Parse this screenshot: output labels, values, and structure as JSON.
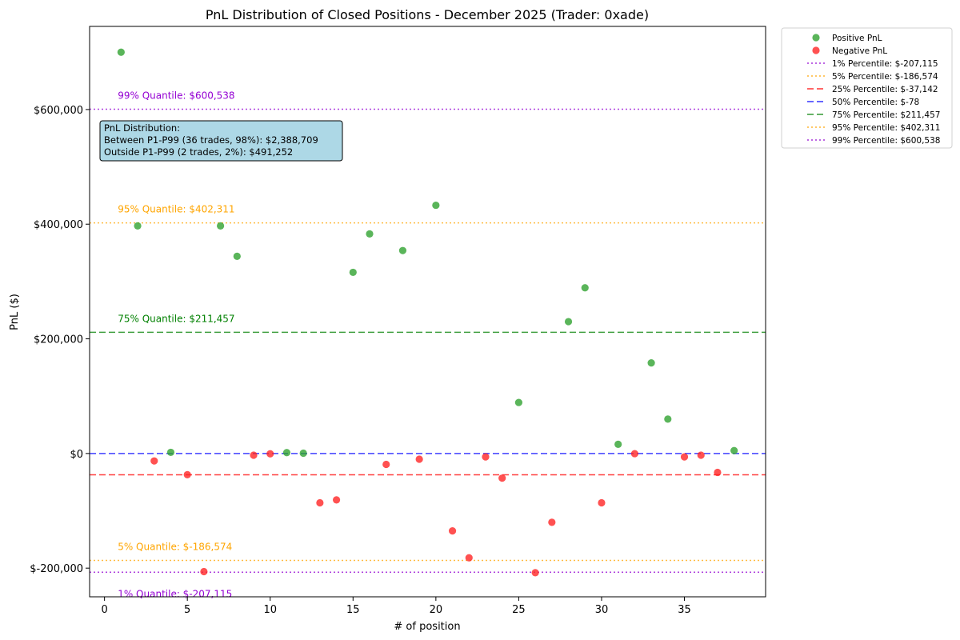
{
  "chart_data": {
    "type": "scatter",
    "title": "PnL Distribution of Closed Positions - December 2025 (Trader: 0xade)",
    "xlabel": "# of position",
    "ylabel": "PnL ($)",
    "xlim": [
      -0.9,
      39.9
    ],
    "ylim": [
      -250000,
      745000
    ],
    "xticks": [
      0,
      5,
      10,
      15,
      20,
      25,
      30,
      35
    ],
    "yticks": [
      -200000,
      0,
      200000,
      400000,
      600000
    ],
    "ytick_labels": [
      "$-200,000",
      "$0",
      "$200,000",
      "$400,000",
      "$600,000"
    ],
    "grid": false,
    "legend_position": "outside-right",
    "series": [
      {
        "name": "Positive PnL",
        "color": "#2ca02c",
        "points": [
          [
            1,
            700000
          ],
          [
            2,
            397000
          ],
          [
            4,
            2000
          ],
          [
            7,
            397000
          ],
          [
            8,
            344000
          ],
          [
            11,
            1500
          ],
          [
            12,
            500
          ],
          [
            15,
            316000
          ],
          [
            16,
            383000
          ],
          [
            18,
            354000
          ],
          [
            20,
            433000
          ],
          [
            25,
            89000
          ],
          [
            28,
            230000
          ],
          [
            29,
            289000
          ],
          [
            31,
            16000
          ],
          [
            33,
            158000
          ],
          [
            34,
            60000
          ],
          [
            38,
            5000
          ]
        ]
      },
      {
        "name": "Negative PnL",
        "color": "#ff2020",
        "points": [
          [
            3,
            -13000
          ],
          [
            5,
            -37000
          ],
          [
            6,
            -206000
          ],
          [
            9,
            -3000
          ],
          [
            10,
            -500
          ],
          [
            13,
            -86000
          ],
          [
            14,
            -81000
          ],
          [
            17,
            -19000
          ],
          [
            19,
            -10000
          ],
          [
            21,
            -135000
          ],
          [
            22,
            -182000
          ],
          [
            23,
            -6000
          ],
          [
            24,
            -43000
          ],
          [
            26,
            -208000
          ],
          [
            27,
            -120000
          ],
          [
            30,
            -86000
          ],
          [
            32,
            -300
          ],
          [
            35,
            -6000
          ],
          [
            36,
            -3000
          ],
          [
            37,
            -33000
          ]
        ]
      }
    ],
    "reference_lines": [
      {
        "name": "1% Percentile: $-207,115",
        "value": -207115,
        "color": "#9400d3",
        "style": "dotted",
        "annotation": "1% Quantile: $-207,115",
        "annotation_side": "below"
      },
      {
        "name": "5% Percentile: $-186,574",
        "value": -186574,
        "color": "#ffa500",
        "style": "dotted",
        "annotation": "5% Quantile: $-186,574",
        "annotation_side": "above"
      },
      {
        "name": "25% Percentile: $-37,142",
        "value": -37142,
        "color": "#ff0000",
        "style": "dashed",
        "annotation": "",
        "annotation_side": "none"
      },
      {
        "name": "50% Percentile: $-78",
        "value": -78,
        "color": "#0000ff",
        "style": "dashed",
        "annotation": "",
        "annotation_side": "none"
      },
      {
        "name": "75% Percentile: $211,457",
        "value": 211457,
        "color": "#008000",
        "style": "dashed",
        "annotation": "75% Quantile: $211,457",
        "annotation_side": "above"
      },
      {
        "name": "95% Percentile: $402,311",
        "value": 402311,
        "color": "#ffa500",
        "style": "dotted",
        "annotation": "95% Quantile: $402,311",
        "annotation_side": "above"
      },
      {
        "name": "99% Percentile: $600,538",
        "value": 600538,
        "color": "#9400d3",
        "style": "dotted",
        "annotation": "99% Quantile: $600,538",
        "annotation_side": "above"
      }
    ],
    "info_box": {
      "lines": [
        "PnL Distribution:",
        "Between P1-P99 (36 trades, 98%): $2,388,709",
        "Outside P1-P99 (2 trades, 2%): $491,252"
      ],
      "background": "#add8e6"
    }
  }
}
